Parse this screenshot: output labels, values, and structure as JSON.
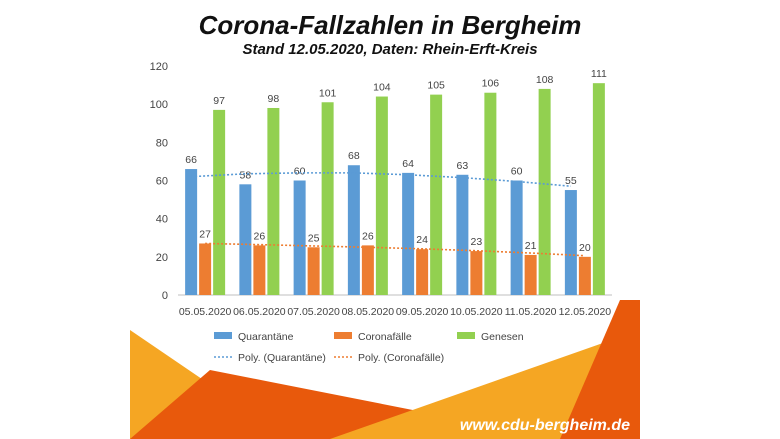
{
  "header": {
    "title": "Corona-Fallzahlen in Bergheim",
    "subtitle": "Stand 12.05.2020, Daten: Rhein-Erft-Kreis"
  },
  "footer": {
    "url": "www.cdu-bergheim.de"
  },
  "colors": {
    "quarantaene": "#5B9BD5",
    "coronafaelle": "#ED7D31",
    "genesen": "#92D050",
    "orange_light": "#F5A623",
    "orange_dark": "#E8590C"
  },
  "chart_data": {
    "type": "bar",
    "categories": [
      "05.05.2020",
      "06.05.2020",
      "07.05.2020",
      "08.05.2020",
      "09.05.2020",
      "10.05.2020",
      "11.05.2020",
      "12.05.2020"
    ],
    "series": [
      {
        "name": "Quarantäne",
        "values": [
          66,
          58,
          60,
          68,
          64,
          63,
          60,
          55
        ]
      },
      {
        "name": "Coronafälle",
        "values": [
          27,
          26,
          25,
          26,
          24,
          23,
          21,
          20
        ]
      },
      {
        "name": "Genesen",
        "values": [
          97,
          98,
          101,
          104,
          105,
          106,
          108,
          111
        ]
      }
    ],
    "trendlines": [
      {
        "name": "Poly. (Quarantäne)",
        "series": "Quarantäne",
        "values": [
          62,
          63.5,
          64,
          64,
          63,
          61.5,
          59.5,
          57
        ]
      },
      {
        "name": "Poly. (Coronafälle)",
        "series": "Coronafälle",
        "values": [
          27,
          26.4,
          25.7,
          25.0,
          24.2,
          23.2,
          22.0,
          20.6
        ]
      }
    ],
    "yticks": [
      0,
      20,
      40,
      60,
      80,
      100,
      120
    ],
    "ylim": [
      0,
      120
    ],
    "legend": "bottom",
    "grid": false,
    "data_labels": true
  }
}
